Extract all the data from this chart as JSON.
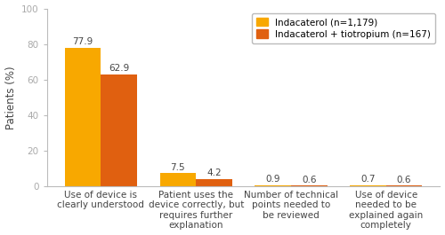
{
  "categories": [
    "Use of device is\nclearly understood",
    "Patient uses the\ndevice correctly, but\nrequires further\nexplanation",
    "Number of technical\npoints needed to\nbe reviewed",
    "Use of device\nneeded to be\nexlained again\ncompletely"
  ],
  "cat_labels": [
    "Use of device is\nclearly understood",
    "Patient uses the\ndevice correctly, but\nrequires further\nexplanation",
    "Number of technical\npoints needed to\nbe reviewed",
    "Use of device\nneeded to be\nexplained again\ncompletely"
  ],
  "indacaterol_values": [
    77.9,
    7.5,
    0.9,
    0.7
  ],
  "combination_values": [
    62.9,
    4.2,
    0.6,
    0.6
  ],
  "indacaterol_color": "#F8A800",
  "combination_color": "#E06010",
  "ylabel": "Patients (%)",
  "ylim": [
    0,
    100
  ],
  "yticks": [
    0,
    20,
    40,
    60,
    80,
    100
  ],
  "legend_labels": [
    "Indacaterol (n=1,179)",
    "Indacaterol + tiotropium (n=167)"
  ],
  "bar_width": 0.38,
  "label_fontsize": 7.5,
  "tick_fontsize": 7.5,
  "legend_fontsize": 7.5,
  "ylabel_fontsize": 8.5
}
